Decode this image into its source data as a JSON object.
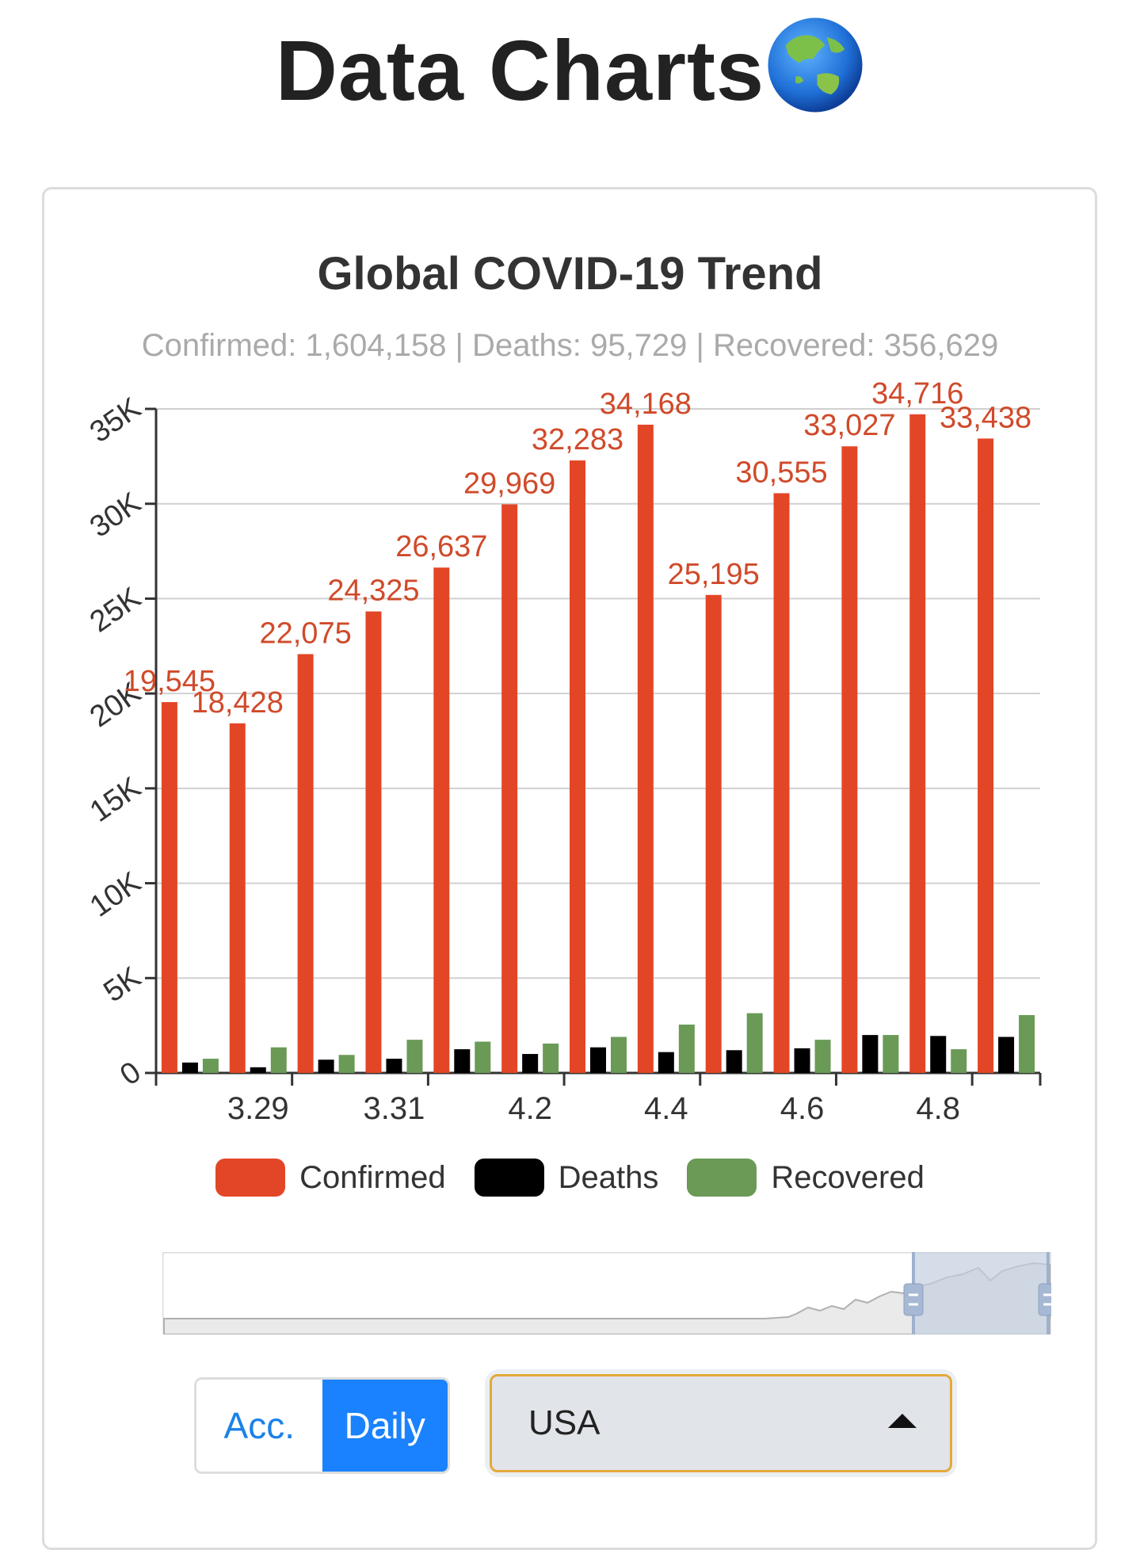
{
  "header": {
    "title": "Data Charts",
    "icon": "globe-asia-australia-icon"
  },
  "card": {
    "title": "Global COVID-19 Trend",
    "subtitle": "Confirmed: 1,604,158 | Deaths: 95,729 | Recovered: 356,629"
  },
  "chart_data": {
    "type": "bar",
    "title": "Global COVID-19 Trend",
    "x_tick_labels": [
      "3.29",
      "3.31",
      "4.2",
      "4.4",
      "4.6",
      "4.8"
    ],
    "categories_count": 13,
    "y_tick_labels": [
      "0",
      "5K",
      "10K",
      "15K",
      "20K",
      "25K",
      "30K",
      "35K"
    ],
    "ylim": [
      0,
      35000
    ],
    "grid": true,
    "legend_position": "bottom",
    "series": [
      {
        "name": "Confirmed",
        "color": "#e34626",
        "values": [
          19545,
          18428,
          22075,
          24325,
          26637,
          29969,
          32283,
          34168,
          25195,
          30555,
          33027,
          34716,
          33438
        ],
        "labels": [
          "19,545",
          "18,428",
          "22,075",
          "24,325",
          "26,637",
          "29,969",
          "32,283",
          "34,168",
          "25,195",
          "30,555",
          "33,027",
          "34,716",
          "33,438"
        ]
      },
      {
        "name": "Deaths",
        "color": "#000000",
        "values": [
          550,
          300,
          700,
          750,
          1250,
          1000,
          1350,
          1100,
          1200,
          1300,
          2000,
          1950,
          1900
        ]
      },
      {
        "name": "Recovered",
        "color": "#6a9a56",
        "values": [
          750,
          1350,
          950,
          1750,
          1650,
          1550,
          1900,
          2550,
          3150,
          1750,
          2000,
          1250,
          3050
        ]
      }
    ]
  },
  "legend": [
    {
      "label": "Confirmed",
      "color": "#e34626"
    },
    {
      "label": "Deaths",
      "color": "#000000"
    },
    {
      "label": "Recovered",
      "color": "#6a9a56"
    }
  ],
  "controls": {
    "mode_options": [
      "Acc.",
      "Daily"
    ],
    "active_mode": "Daily",
    "region_selected": "USA"
  },
  "zoom": {
    "start_fraction": 0.85,
    "end_fraction": 1.0
  }
}
